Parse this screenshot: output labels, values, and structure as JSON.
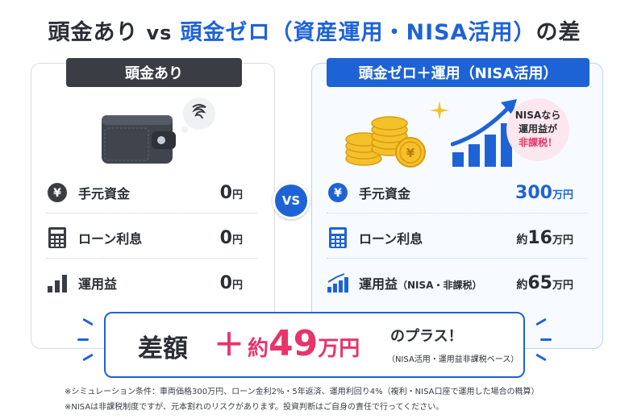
{
  "title": {
    "part1": "頭金あり",
    "vs": "vs",
    "part2": "頭金ゼロ（資産運用・NISA活用）",
    "part3": "の差"
  },
  "left": {
    "header": "頭金あり",
    "rows": [
      {
        "icon": "yen-icon",
        "label": "手元資金",
        "value": "0",
        "unit": "円"
      },
      {
        "icon": "calculator-icon",
        "label": "ローン利息",
        "value": "0",
        "unit": "円"
      },
      {
        "icon": "bar-chart-icon",
        "label": "運用益",
        "value": "0",
        "unit": "円"
      }
    ]
  },
  "right": {
    "header": "頭金ゼロ＋運用（NISA活用）",
    "bubble": {
      "line1": "NISAなら",
      "line2": "運用益が",
      "line3": "非課税！"
    },
    "rows": [
      {
        "icon": "yen-icon",
        "label": "手元資金",
        "label_sub": "",
        "prefix": "",
        "value": "300",
        "unit": "万円"
      },
      {
        "icon": "calculator-icon",
        "label": "ローン利息",
        "label_sub": "",
        "prefix": "約",
        "value": "16",
        "unit": "万円"
      },
      {
        "icon": "trend-up-icon",
        "label": "運用益",
        "label_sub": "（NISA・非課税）",
        "prefix": "約",
        "value": "65",
        "unit": "万円"
      }
    ]
  },
  "vs_badge": "VS",
  "difference": {
    "label": "差額",
    "plus": "＋",
    "prefix": "約",
    "value": "49",
    "unit": "万円",
    "suffix": "のプラス！",
    "note": "（NISA活用・運用益非課税ベース）"
  },
  "footnotes": [
    "※シミュレーション条件：車両価格300万円、ローン金利2%・5年返済、運用利回り4%（複利・NISA口座で運用した場合の概算）",
    "※NISAは非課税制度ですが、元本割れのリスクがあります。投資判断はご自身の責任で行ってください。"
  ],
  "colors": {
    "accent_blue": "#1e63d6",
    "accent_pink": "#e8336b",
    "dark": "#3a3d44"
  }
}
